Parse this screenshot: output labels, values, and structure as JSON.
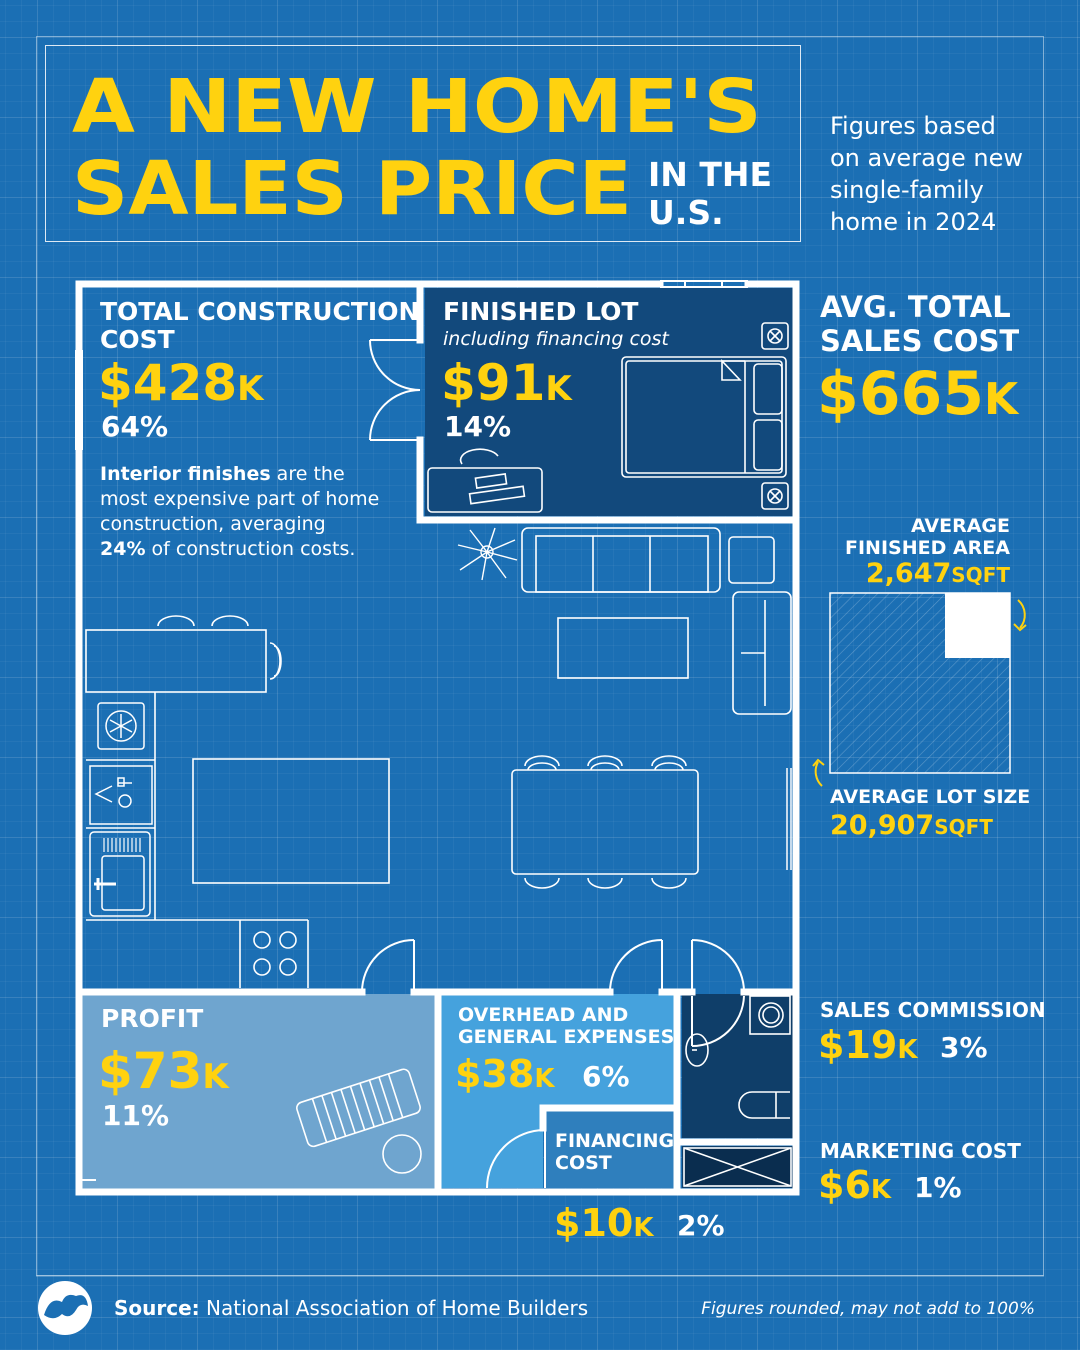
{
  "title": {
    "line1": "A NEW HOME'S",
    "line2": "SALES PRICE",
    "suffix_line1": "IN THE",
    "suffix_line2": "U.S."
  },
  "note": {
    "lines": [
      "Figures based",
      "on average new",
      "single-family",
      "home in 2024"
    ]
  },
  "total_sales": {
    "label_line1": "AVG. TOTAL",
    "label_line2": "SALES COST",
    "amount": "$665",
    "unit": "K"
  },
  "construction": {
    "label_line1": "TOTAL CONSTRUCTION",
    "label_line2": "COST",
    "amount": "$428",
    "unit": "K",
    "percent": "64%",
    "note_bold1": "Interior finishes",
    "note_rest1": " are the",
    "note_line2": "most expensive part of home",
    "note_line3": "construction, averaging",
    "note_bold4": "24%",
    "note_rest4": " of construction costs."
  },
  "finished_lot": {
    "label": "FINISHED LOT",
    "sublabel": "including financing cost",
    "amount": "$91",
    "unit": "K",
    "percent": "14%"
  },
  "profit": {
    "label": "PROFIT",
    "amount": "$73",
    "unit": "K",
    "percent": "11%"
  },
  "overhead": {
    "label_line1": "OVERHEAD AND",
    "label_line2": "GENERAL EXPENSES",
    "amount": "$38",
    "unit": "K",
    "percent": "6%"
  },
  "financing": {
    "label_line1": "FINANCING",
    "label_line2": "COST",
    "amount": "$10",
    "unit": "K",
    "percent": "2%"
  },
  "sales_commission": {
    "label": "SALES COMMISSION",
    "amount": "$19",
    "unit": "K",
    "percent": "3%"
  },
  "marketing": {
    "label": "MARKETING COST",
    "amount": "$6",
    "unit": "K",
    "percent": "1%"
  },
  "finished_area": {
    "label_line1": "AVERAGE",
    "label_line2": "FINISHED AREA",
    "value": "2,647",
    "unit": "SQFT"
  },
  "lot_size": {
    "label": "AVERAGE LOT SIZE",
    "value": "20,907",
    "unit": "SQFT"
  },
  "footer": {
    "source_label": "Source:",
    "source_text": " National Association of Home Builders",
    "disclaimer": "Figures rounded, may not add to 100%"
  },
  "colors": {
    "background": "#1b6fb4",
    "accent_yellow": "#ffd20f",
    "finished_lot_fill": "#12497c",
    "profit_fill": "#6fa5cf",
    "overhead_fill": "#45a2dd",
    "financing_fill": "#2f7fbd",
    "bathroom_fill": "#0f3e69"
  }
}
